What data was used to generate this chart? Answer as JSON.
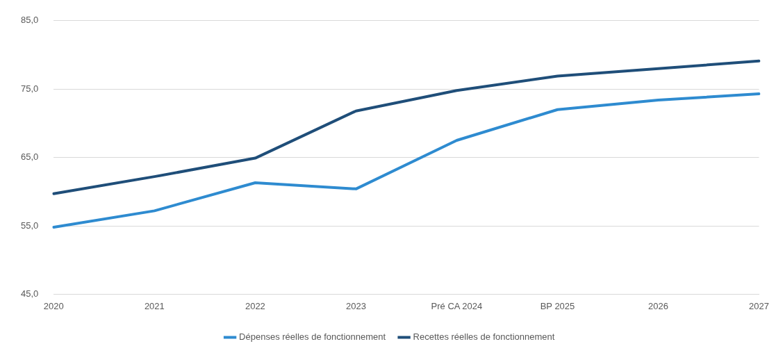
{
  "chart_data": {
    "type": "line",
    "categories": [
      "2020",
      "2021",
      "2022",
      "2023",
      "Pré CA 2024",
      "BP 2025",
      "2026",
      "2027"
    ],
    "series": [
      {
        "name": "Dépenses réelles de fonctionnement",
        "color": "#2e8bd0",
        "values": [
          54.8,
          57.2,
          61.3,
          60.4,
          67.5,
          72.0,
          73.4,
          74.3
        ]
      },
      {
        "name": "Recettes réelles de fonctionnement",
        "color": "#1f4e79",
        "values": [
          59.7,
          62.2,
          64.9,
          71.8,
          74.8,
          76.9,
          78.0,
          79.1
        ]
      }
    ],
    "ylim": [
      45,
      85
    ],
    "yticks": [
      {
        "value": 45,
        "label": "45,0"
      },
      {
        "value": 55,
        "label": "55,0"
      },
      {
        "value": 65,
        "label": "65,0"
      },
      {
        "value": 75,
        "label": "75,0"
      },
      {
        "value": 85,
        "label": "85,0"
      }
    ],
    "grid": "y",
    "legend": "bottom",
    "marker": "none",
    "line_style": "solid"
  }
}
